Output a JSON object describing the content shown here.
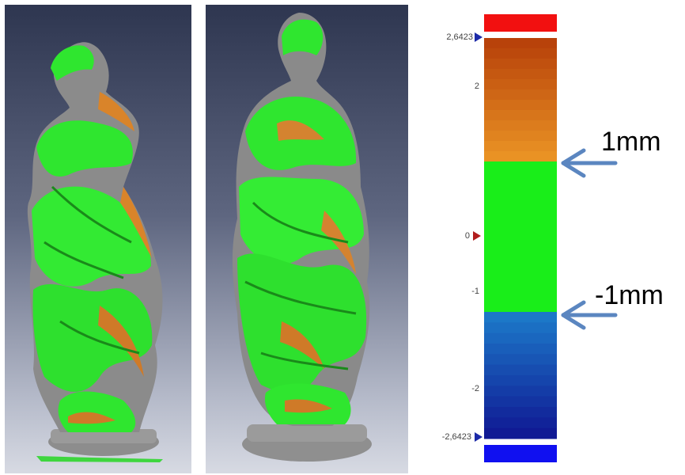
{
  "colorbar": {
    "labels": {
      "max": "2,6423",
      "two": "2",
      "zero": "0",
      "neg_one": "-1",
      "neg_two": "-2",
      "min": "-2,6423"
    },
    "colors": {
      "over_max": "#f21010",
      "upper_top": "#b8420a",
      "upper_bottom": "#e99224",
      "in_tolerance": "#19ee19",
      "lower_top": "#1c78c8",
      "lower_bottom": "#101a94",
      "under_min": "#1010f0"
    }
  },
  "annotations": {
    "upper_tolerance": "1mm",
    "lower_tolerance": "-1mm"
  },
  "arrow_color": "#5b86c0"
}
